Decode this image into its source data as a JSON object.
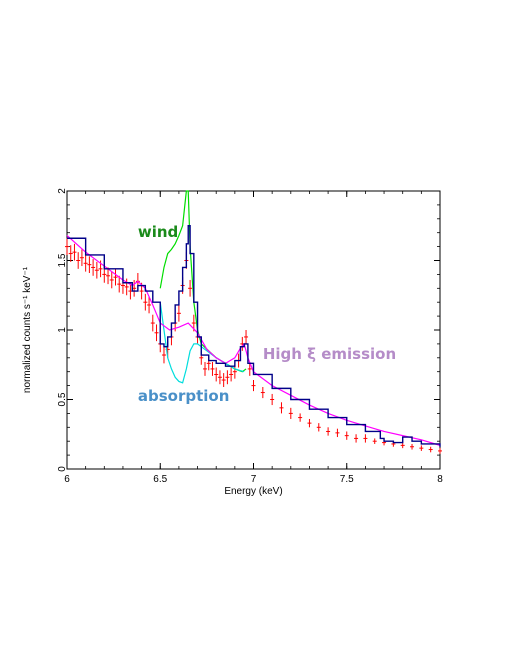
{
  "chart_data": {
    "type": "line",
    "xlabel": "Energy (keV)",
    "ylabel": "normalized counts s⁻¹ keV⁻¹",
    "xlim": [
      6,
      8
    ],
    "ylim": [
      0,
      2
    ],
    "x_ticks": [
      "6",
      "6.5",
      "7",
      "7.5",
      "8"
    ],
    "y_ticks": [
      "0",
      "0.5",
      "1",
      "1.5",
      "2"
    ],
    "grid": false,
    "annotations": [
      {
        "text": "wind",
        "color": "#1a8a1a",
        "x": 6.38,
        "y": 1.67
      },
      {
        "text": "absorption",
        "color": "#4a90c8",
        "x": 6.38,
        "y": 0.49
      },
      {
        "text": "High ξ emission",
        "color": "#b58cc8",
        "x": 7.05,
        "y": 0.79
      }
    ],
    "series": [
      {
        "color": "#ff0000",
        "style": "data-with-errors",
        "x": [
          6.0,
          6.02,
          6.04,
          6.06,
          6.08,
          6.1,
          6.12,
          6.14,
          6.16,
          6.18,
          6.2,
          6.22,
          6.24,
          6.26,
          6.28,
          6.3,
          6.32,
          6.34,
          6.36,
          6.38,
          6.4,
          6.42,
          6.44,
          6.46,
          6.48,
          6.5,
          6.52,
          6.54,
          6.56,
          6.58,
          6.6,
          6.62,
          6.64,
          6.66,
          6.68,
          6.7,
          6.72,
          6.74,
          6.76,
          6.78,
          6.8,
          6.82,
          6.84,
          6.86,
          6.88,
          6.9,
          6.92,
          6.94,
          6.96,
          6.98,
          7.0,
          7.05,
          7.1,
          7.15,
          7.2,
          7.25,
          7.3,
          7.35,
          7.4,
          7.45,
          7.5,
          7.55,
          7.6,
          7.65,
          7.7,
          7.75,
          7.8,
          7.85,
          7.9,
          7.95,
          8.0
        ],
        "y": [
          1.6,
          1.55,
          1.56,
          1.5,
          1.52,
          1.48,
          1.47,
          1.45,
          1.43,
          1.44,
          1.4,
          1.39,
          1.36,
          1.38,
          1.33,
          1.32,
          1.31,
          1.28,
          1.3,
          1.35,
          1.28,
          1.2,
          1.18,
          1.05,
          0.98,
          0.9,
          0.82,
          0.86,
          0.95,
          1.05,
          1.12,
          1.32,
          1.5,
          1.3,
          1.05,
          0.95,
          0.8,
          0.72,
          0.76,
          0.72,
          0.68,
          0.66,
          0.64,
          0.66,
          0.68,
          0.7,
          0.78,
          0.9,
          0.95,
          0.72,
          0.6,
          0.55,
          0.5,
          0.44,
          0.4,
          0.37,
          0.33,
          0.3,
          0.27,
          0.26,
          0.24,
          0.22,
          0.22,
          0.2,
          0.19,
          0.18,
          0.17,
          0.16,
          0.15,
          0.14,
          0.13
        ],
        "err": [
          0.06,
          0.06,
          0.06,
          0.06,
          0.06,
          0.06,
          0.06,
          0.06,
          0.06,
          0.06,
          0.06,
          0.06,
          0.06,
          0.06,
          0.06,
          0.06,
          0.06,
          0.06,
          0.06,
          0.06,
          0.06,
          0.06,
          0.06,
          0.06,
          0.06,
          0.06,
          0.06,
          0.06,
          0.06,
          0.06,
          0.06,
          0.06,
          0.06,
          0.06,
          0.06,
          0.05,
          0.05,
          0.05,
          0.05,
          0.05,
          0.05,
          0.05,
          0.05,
          0.05,
          0.05,
          0.05,
          0.05,
          0.05,
          0.05,
          0.05,
          0.04,
          0.04,
          0.04,
          0.04,
          0.04,
          0.03,
          0.03,
          0.03,
          0.03,
          0.03,
          0.03,
          0.03,
          0.03,
          0.02,
          0.02,
          0.02,
          0.02,
          0.02,
          0.02,
          0.02,
          0.02
        ]
      },
      {
        "color": "#00dd00",
        "style": "line",
        "x": [
          6.5,
          6.52,
          6.54,
          6.56,
          6.58,
          6.6,
          6.62,
          6.64,
          6.65,
          6.66,
          6.68,
          6.7,
          6.72,
          6.8,
          6.9,
          6.94,
          6.96
        ],
        "y": [
          1.3,
          1.45,
          1.55,
          1.58,
          1.62,
          1.68,
          1.75,
          2.0,
          2.0,
          1.6,
          1.2,
          1.0,
          0.9,
          0.8,
          0.72,
          0.7,
          0.72
        ]
      },
      {
        "color": "#00dddd",
        "style": "line",
        "x": [
          6.5,
          6.52,
          6.54,
          6.56,
          6.58,
          6.6,
          6.62,
          6.64,
          6.66,
          6.68,
          6.7,
          6.72,
          6.76,
          6.8,
          6.9,
          6.95
        ],
        "y": [
          1.2,
          1.0,
          0.8,
          0.72,
          0.66,
          0.63,
          0.62,
          0.72,
          0.85,
          0.9,
          0.9,
          0.88,
          0.84,
          0.8,
          0.72,
          0.7
        ]
      },
      {
        "color": "#ff00ff",
        "style": "line",
        "x": [
          6.0,
          6.1,
          6.2,
          6.3,
          6.35,
          6.38,
          6.42,
          6.46,
          6.5,
          6.55,
          6.6,
          6.65,
          6.7,
          6.75,
          6.8,
          6.85,
          6.9,
          6.93,
          6.95,
          6.97,
          7.0,
          7.1,
          7.2,
          7.3,
          7.4,
          7.5,
          7.6,
          7.7,
          7.8,
          7.9,
          8.0
        ],
        "y": [
          1.68,
          1.56,
          1.46,
          1.36,
          1.32,
          1.35,
          1.3,
          1.18,
          1.05,
          1.0,
          1.02,
          1.05,
          0.98,
          0.86,
          0.8,
          0.76,
          0.8,
          0.87,
          0.9,
          0.8,
          0.7,
          0.6,
          0.53,
          0.46,
          0.4,
          0.35,
          0.31,
          0.27,
          0.24,
          0.21,
          0.17
        ]
      },
      {
        "color": "#000088",
        "style": "step",
        "x": [
          6.0,
          6.1,
          6.2,
          6.3,
          6.35,
          6.38,
          6.42,
          6.46,
          6.5,
          6.52,
          6.54,
          6.56,
          6.58,
          6.6,
          6.62,
          6.64,
          6.65,
          6.66,
          6.68,
          6.7,
          6.72,
          6.76,
          6.8,
          6.85,
          6.9,
          6.93,
          6.95,
          6.97,
          7.0,
          7.1,
          7.2,
          7.3,
          7.4,
          7.5,
          7.6,
          7.68,
          7.7,
          7.75,
          7.8,
          7.85,
          7.9,
          8.0
        ],
        "y": [
          1.66,
          1.54,
          1.44,
          1.34,
          1.28,
          1.32,
          1.28,
          1.2,
          0.9,
          0.88,
          0.95,
          1.05,
          1.18,
          1.28,
          1.45,
          1.62,
          1.75,
          1.55,
          1.2,
          0.95,
          0.82,
          0.78,
          0.76,
          0.74,
          0.78,
          0.88,
          0.9,
          0.76,
          0.68,
          0.58,
          0.5,
          0.43,
          0.37,
          0.32,
          0.27,
          0.22,
          0.2,
          0.19,
          0.23,
          0.2,
          0.18,
          0.16
        ]
      }
    ]
  }
}
